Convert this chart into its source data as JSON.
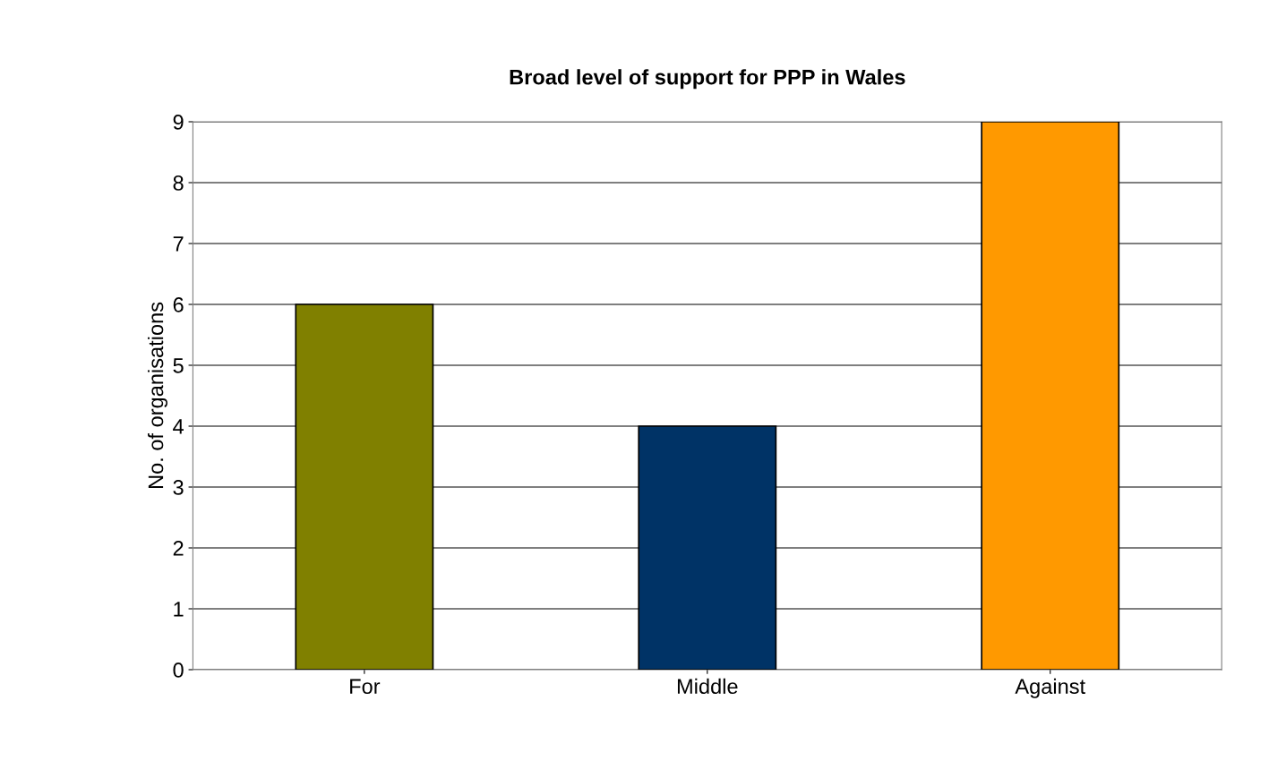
{
  "chart_data": {
    "type": "bar",
    "title": "Broad level of support for PPP in Wales",
    "ylabel": "No. of organisations",
    "categories": [
      "For",
      "Middle",
      "Against"
    ],
    "values": [
      6,
      4,
      9
    ],
    "colors": [
      "#808000",
      "#003366",
      "#ff9900"
    ],
    "ylim": [
      0,
      9
    ],
    "yticks": [
      0,
      1,
      2,
      3,
      4,
      5,
      6,
      7,
      8,
      9
    ],
    "grid": "y",
    "legend": false
  }
}
